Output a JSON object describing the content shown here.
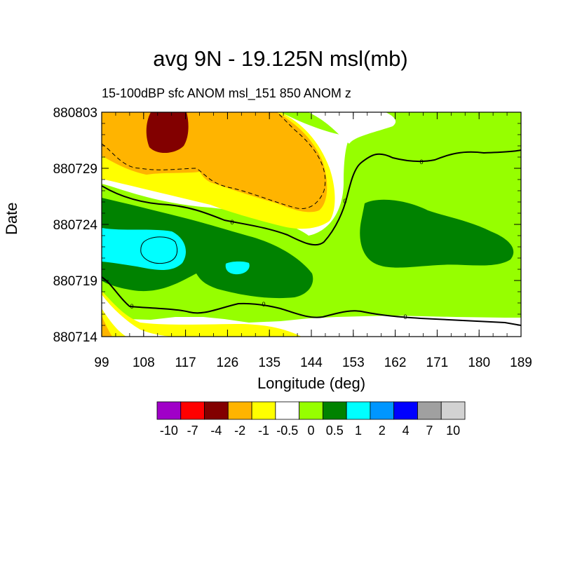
{
  "chart_data": {
    "type": "heatmap",
    "title": "avg 9N - 19.125N msl(mb)",
    "subtitle": "15-100dBP sfc ANOM msl_151 850 ANOM z",
    "xlabel": "Longitude (deg)",
    "ylabel": "Date",
    "xlim": [
      99,
      189
    ],
    "x_ticks": [
      "99",
      "108",
      "117",
      "126",
      "135",
      "144",
      "153",
      "162",
      "171",
      "180",
      "189"
    ],
    "y_ticks": [
      "880714",
      "880719",
      "880724",
      "880729",
      "880803"
    ],
    "colorbar": {
      "levels": [
        "-10",
        "-7",
        "-4",
        "-2",
        "-1",
        "-0.5",
        "0",
        "0.5",
        "1",
        "2",
        "4",
        "7",
        "10"
      ],
      "colors": [
        "#a000c8",
        "#ff0000",
        "#820000",
        "#ffb400",
        "#ffff00",
        "#ffffff",
        "#96ff00",
        "#008200",
        "#00ffff",
        "#0096ff",
        "#0000ff",
        "#a0a0a0",
        "#d2d2d2"
      ]
    },
    "contour_labels": [
      "0",
      "0",
      "0",
      "0",
      "0",
      "0"
    ]
  }
}
